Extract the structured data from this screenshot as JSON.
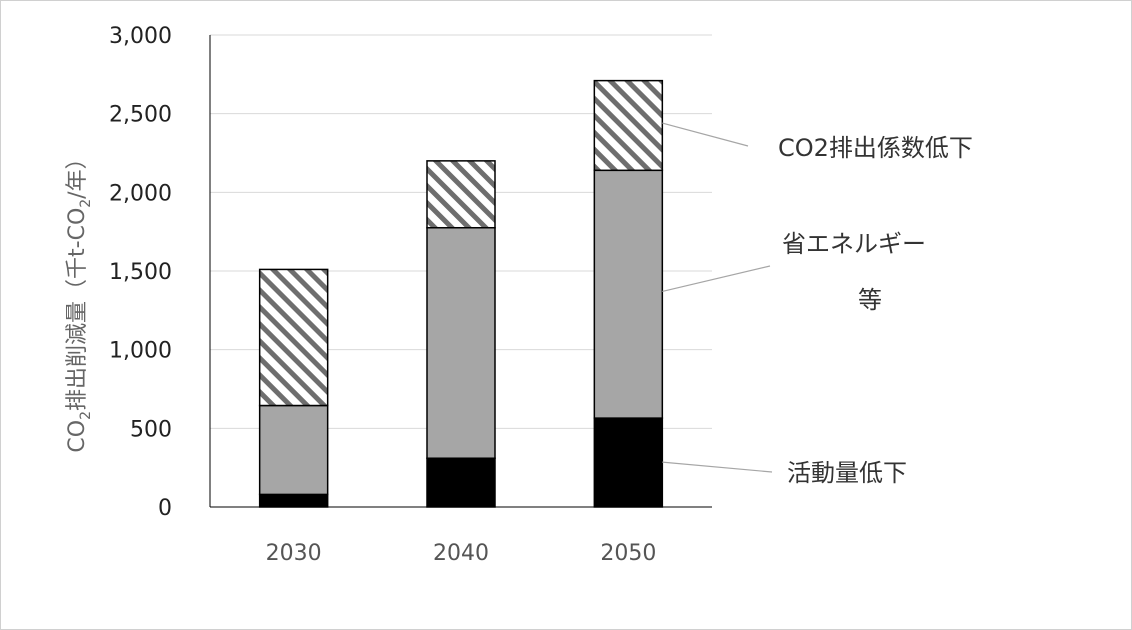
{
  "chart_data": {
    "type": "bar",
    "stacked": true,
    "categories": [
      "2030",
      "2040",
      "2050"
    ],
    "series": [
      {
        "name": "活動量低下",
        "values": [
          80,
          310,
          565
        ],
        "color": "#000000",
        "fill_style": "solid"
      },
      {
        "name": "省エネルギー等",
        "values": [
          565,
          1465,
          1575
        ],
        "color": "#a6a6a6",
        "fill_style": "solid"
      },
      {
        "name": "CO2排出係数低下",
        "values": [
          865,
          425,
          570
        ],
        "color": "#7f7f7f",
        "fill_style": "diagonal-hatch"
      }
    ],
    "ylabel": {
      "prefix": "CO",
      "sub": "2",
      "mid": "排出削減量（千t-CO",
      "sub2": "2",
      "suffix": "/年）"
    },
    "ylim": [
      0,
      3000
    ],
    "yticks": [
      "0",
      "500",
      "1,000",
      "1,500",
      "2,000",
      "2,500",
      "3,000"
    ],
    "ytick_values": [
      0,
      500,
      1000,
      1500,
      2000,
      2500,
      3000
    ],
    "legend_labels": {
      "co2": "CO2排出係数低下",
      "energy_line1": "省エネルギー",
      "energy_line2": "等",
      "activity": "活動量低下"
    },
    "grid": true,
    "legend_placement": "right"
  }
}
